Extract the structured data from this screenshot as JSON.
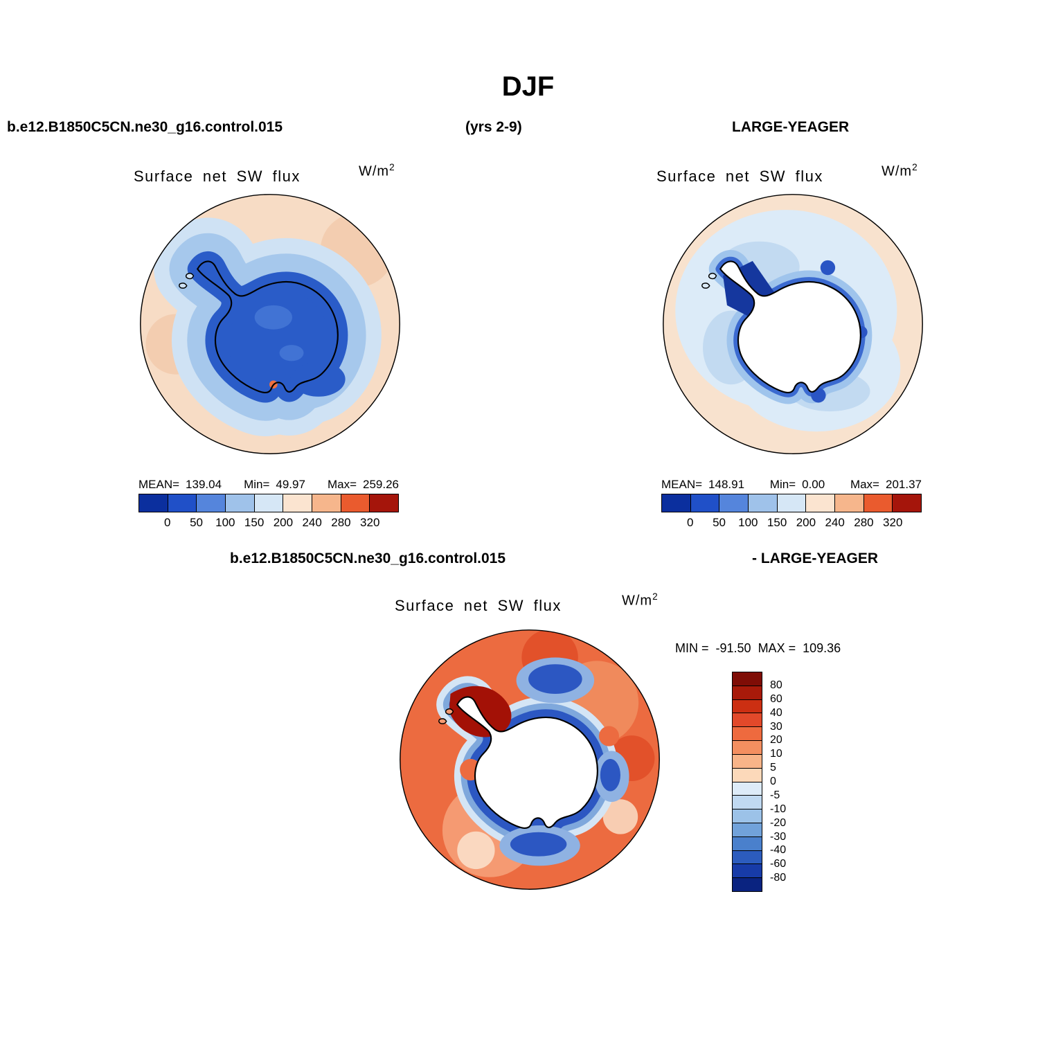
{
  "header": {
    "title": "DJF",
    "left": "b.e12.B1850C5CN.ne30_g16.control.015",
    "center": "(yrs 2-9)",
    "right": "LARGE-YEAGER"
  },
  "model_panel": {
    "field_title": "Surface net SW flux",
    "units_base": "W/m",
    "units_exp": "2",
    "mean_label": "MEAN=",
    "mean": "139.04",
    "min_label": "Min=",
    "min": "49.97",
    "max_label": "Max=",
    "max": "259.26",
    "colorbar": {
      "colors": [
        "#0b2f9e",
        "#2050c8",
        "#5585dc",
        "#9fc2ea",
        "#d6e7f6",
        "#fbe4d0",
        "#f6b68c",
        "#ea5b2e",
        "#a5150b"
      ],
      "tick_labels": [
        "0",
        "50",
        "100",
        "150",
        "200",
        "240",
        "280",
        "320"
      ]
    }
  },
  "obs_panel": {
    "field_title": "Surface net SW flux",
    "units_base": "W/m",
    "units_exp": "2",
    "mean_label": "MEAN=",
    "mean": "148.91",
    "min_label": "Min=",
    "min": "0.00",
    "max_label": "Max=",
    "max": "201.37",
    "colorbar": {
      "colors": [
        "#0b2f9e",
        "#2050c8",
        "#5585dc",
        "#9fc2ea",
        "#d6e7f6",
        "#fbe4d0",
        "#f6b68c",
        "#ea5b2e",
        "#a5150b"
      ],
      "tick_labels": [
        "0",
        "50",
        "100",
        "150",
        "200",
        "240",
        "280",
        "320"
      ]
    }
  },
  "diff_panel": {
    "left_title": "b.e12.B1850C5CN.ne30_g16.control.015",
    "right_title": "- LARGE-YEAGER",
    "field_title": "Surface net SW flux",
    "units_base": "W/m",
    "units_exp": "2",
    "min_label": "MIN =",
    "min": "-91.50",
    "max_label": "MAX =",
    "max": "109.36",
    "colorbar": {
      "colors": [
        "#7f0d06",
        "#a81a0a",
        "#cc2f12",
        "#e2492a",
        "#ee6a3e",
        "#f48f60",
        "#f8b488",
        "#fcd9ba",
        "#ddebf8",
        "#c0d9f1",
        "#9cc2e8",
        "#71a2da",
        "#4a80cc",
        "#2c5cbe",
        "#173ba8",
        "#0a2380"
      ],
      "tick_labels": [
        "80",
        "60",
        "40",
        "30",
        "20",
        "10",
        "5",
        "0",
        "-5",
        "-10",
        "-20",
        "-30",
        "-40",
        "-60",
        "-80"
      ]
    }
  },
  "chart_data": [
    {
      "type": "heatmap",
      "id": "model-map",
      "title": "Surface net SW flux",
      "dataset": "b.e12.B1850C5CN.ne30_g16.control.015",
      "season": "DJF",
      "period": "yrs 2-9",
      "units": "W/m^2",
      "projection": "south polar stereographic",
      "stats": {
        "mean": 139.04,
        "min": 49.97,
        "max": 259.26
      },
      "contour_levels": [
        0,
        50,
        100,
        150,
        200,
        240,
        280,
        320
      ],
      "palette": [
        "#0b2f9e",
        "#2050c8",
        "#5585dc",
        "#9fc2ea",
        "#d6e7f6",
        "#fbe4d0",
        "#f6b68c",
        "#ea5b2e",
        "#a5150b"
      ],
      "legend_position": "below"
    },
    {
      "type": "heatmap",
      "id": "obs-map",
      "title": "Surface net SW flux",
      "dataset": "LARGE-YEAGER",
      "season": "DJF",
      "units": "W/m^2",
      "projection": "south polar stereographic",
      "stats": {
        "mean": 148.91,
        "min": 0.0,
        "max": 201.37
      },
      "contour_levels": [
        0,
        50,
        100,
        150,
        200,
        240,
        280,
        320
      ],
      "palette": [
        "#0b2f9e",
        "#2050c8",
        "#5585dc",
        "#9fc2ea",
        "#d6e7f6",
        "#fbe4d0",
        "#f6b68c",
        "#ea5b2e",
        "#a5150b"
      ],
      "legend_position": "below"
    },
    {
      "type": "heatmap",
      "id": "difference-map",
      "title": "Surface net SW flux",
      "dataset": "b.e12.B1850C5CN.ne30_g16.control.015 - LARGE-YEAGER",
      "season": "DJF",
      "units": "W/m^2",
      "projection": "south polar stereographic",
      "stats": {
        "min": -91.5,
        "max": 109.36
      },
      "contour_levels": [
        -80,
        -60,
        -40,
        -30,
        -20,
        -10,
        -5,
        0,
        5,
        10,
        20,
        30,
        40,
        60,
        80
      ],
      "palette": [
        "#0a2380",
        "#173ba8",
        "#2c5cbe",
        "#4a80cc",
        "#71a2da",
        "#9cc2e8",
        "#c0d9f1",
        "#ddebf8",
        "#fcd9ba",
        "#f8b488",
        "#f48f60",
        "#ee6a3e",
        "#e2492a",
        "#cc2f12",
        "#a81a0a",
        "#7f0d06"
      ],
      "legend_position": "right"
    }
  ]
}
